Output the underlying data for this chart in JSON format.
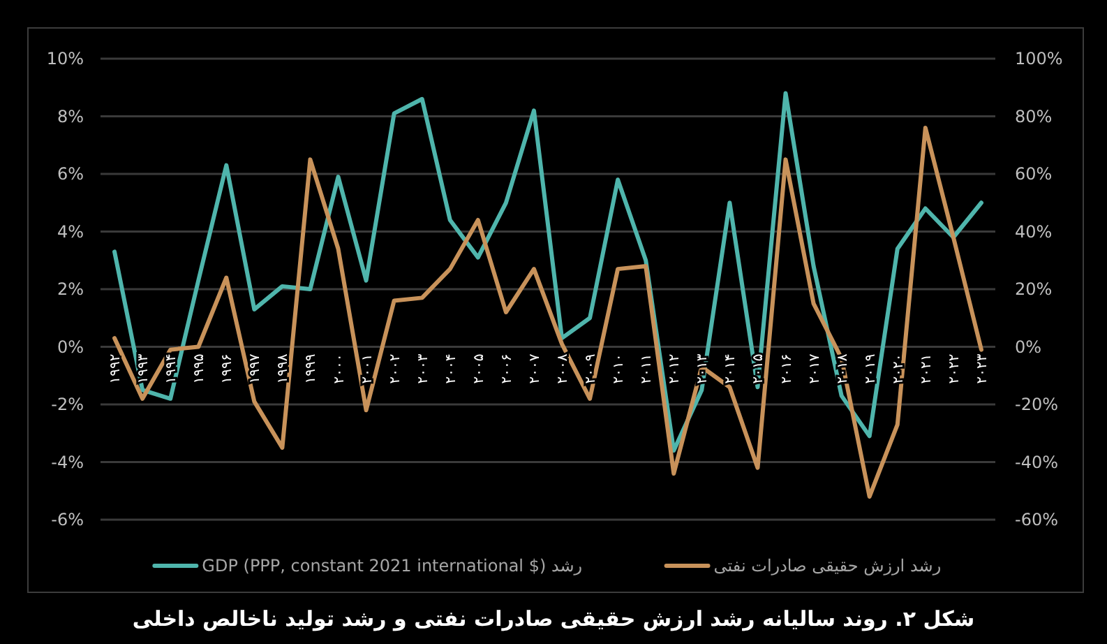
{
  "chart_data": {
    "type": "line",
    "title": "شکل ۲. روند سالیانه رشد ارزش حقیقی صادرات نفتی و رشد تولید ناخالص داخلی",
    "categories": [
      "۱۹۹۲",
      "۱۹۹۳",
      "۱۹۹۴",
      "۱۹۹۵",
      "۱۹۹۶",
      "۱۹۹۷",
      "۱۹۹۸",
      "۱۹۹۹",
      "۲۰۰۰",
      "۲۰۰۱",
      "۲۰۰۲",
      "۲۰۰۳",
      "۲۰۰۴",
      "۲۰۰۵",
      "۲۰۰۶",
      "۲۰۰۷",
      "۲۰۰۸",
      "۲۰۰۹",
      "۲۰۱۰",
      "۲۰۱۱",
      "۲۰۱۲",
      "۲۰۱۳",
      "۲۰۱۴",
      "۲۰۱۵",
      "۲۰۱۶",
      "۲۰۱۷",
      "۲۰۱۸",
      "۲۰۱۹",
      "۲۰۲۰",
      "۲۰۲۱",
      "۲۰۲۲",
      "۲۰۲۳"
    ],
    "series": [
      {
        "name": "رشد GDP (PPP, constant 2021 international $)",
        "color": "#4fb5ac",
        "values": [
          3.3,
          -1.5,
          -1.8,
          2.3,
          6.3,
          1.3,
          2.1,
          2.0,
          5.9,
          2.3,
          8.1,
          8.6,
          4.4,
          3.1,
          5.0,
          8.2,
          0.3,
          1.0,
          5.8,
          3.0,
          -3.6,
          -1.5,
          5.0,
          -1.4,
          8.8,
          2.8,
          -1.7,
          -3.1,
          3.4,
          4.8,
          3.8,
          5.0
        ]
      },
      {
        "name": "رشد ارزش حقیقی صادرات نفتی",
        "color": "#c8925a",
        "axis": "y2",
        "values": [
          3,
          -18,
          -1,
          0,
          24,
          -19,
          -35,
          65,
          34,
          -22,
          16,
          17,
          27,
          44,
          12,
          27,
          1,
          -18,
          27,
          28,
          -44,
          -7,
          -14,
          -42,
          65,
          15,
          -4,
          -52,
          -27,
          76,
          38,
          -1
        ]
      }
    ],
    "ylim": [
      -6,
      10
    ],
    "yticks": [
      {
        "value": -6,
        "label": "-6%"
      },
      {
        "value": -4,
        "label": "-4%"
      },
      {
        "value": -2,
        "label": "-2%"
      },
      {
        "value": 0,
        "label": "0%"
      },
      {
        "value": 2,
        "label": "2%"
      },
      {
        "value": 4,
        "label": "4%"
      },
      {
        "value": 6,
        "label": "6%"
      },
      {
        "value": 8,
        "label": "8%"
      },
      {
        "value": 10,
        "label": "10%"
      }
    ],
    "y2lim": [
      -60,
      100
    ],
    "y2ticks": [
      {
        "value": -60,
        "label": "-60%"
      },
      {
        "value": -40,
        "label": "-40%"
      },
      {
        "value": -20,
        "label": "-20%"
      },
      {
        "value": 0,
        "label": "0%"
      },
      {
        "value": 20,
        "label": "20%"
      },
      {
        "value": 40,
        "label": "40%"
      },
      {
        "value": 60,
        "label": "60%"
      },
      {
        "value": 80,
        "label": "80%"
      },
      {
        "value": 100,
        "label": "100%"
      }
    ],
    "grid": "y",
    "legend": "bottom"
  }
}
